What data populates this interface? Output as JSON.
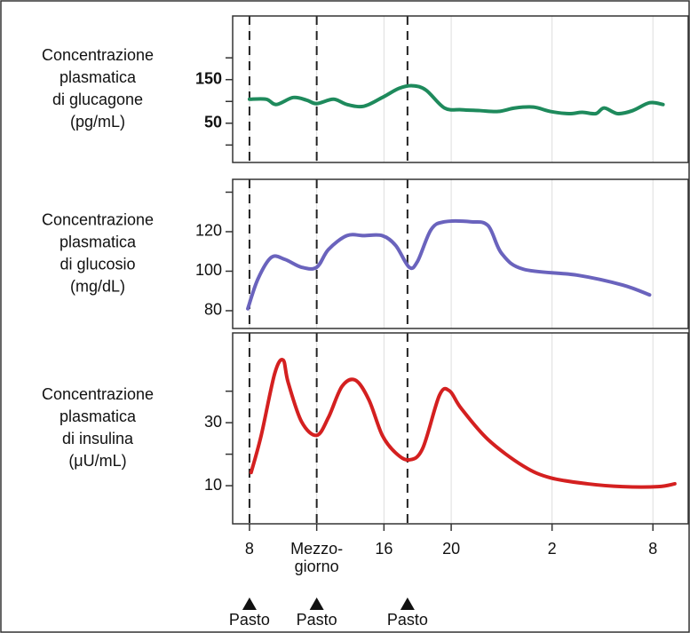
{
  "chart_data": [
    {
      "type": "line",
      "ylabel": [
        "Concentrazione",
        "plasmatica",
        "di glucagone",
        "(pg/mL)"
      ],
      "x": [
        8,
        9,
        9.6,
        10.6,
        11.4,
        12,
        13,
        13.8,
        14.8,
        15.9,
        16.9,
        17.7,
        18.5,
        19.6,
        20.6,
        21.7,
        22.8,
        23.8,
        24.9,
        25.9,
        27,
        27.8,
        28.6,
        29.1,
        29.9,
        30.8,
        31.8,
        32.6
      ],
      "values": [
        105,
        105,
        93,
        109,
        103,
        95,
        105,
        93,
        89,
        109,
        130,
        136,
        126,
        85,
        81,
        79,
        77,
        85,
        87,
        77,
        72,
        75,
        72,
        85,
        72,
        79,
        97,
        93
      ],
      "color": "#1e8a5c",
      "xlim": [
        7,
        34.1
      ],
      "ylim": [
        -40,
        296
      ],
      "yticks": [
        50,
        150
      ],
      "minor_yticks": [
        0,
        100,
        200
      ],
      "bold_ticks": true
    },
    {
      "type": "line",
      "ylabel": [
        "Concentrazione",
        "plasmatica",
        "di glucosio",
        "(mg/dL)"
      ],
      "x": [
        7.9,
        8.5,
        9.3,
        10.1,
        11.1,
        12,
        12.7,
        13.8,
        14.8,
        15.9,
        16.7,
        17.5,
        18,
        18.8,
        19.6,
        21.2,
        22.2,
        23,
        24.3,
        27.5,
        30.2,
        31.8
      ],
      "values": [
        81,
        96,
        107,
        106,
        102,
        102,
        111,
        118,
        118,
        118,
        113,
        102,
        105,
        121,
        125,
        125,
        123,
        109,
        101,
        98,
        93,
        88
      ],
      "color": "#6a63bd",
      "xlim": [
        7,
        34.1
      ],
      "ylim": [
        71,
        146.5
      ],
      "yticks": [
        80,
        100,
        120
      ],
      "minor_yticks": [
        140
      ],
      "bold_ticks": false
    },
    {
      "type": "line",
      "ylabel": [
        "Concentrazione",
        "plasmatica",
        "di insulina",
        "(μU/mL)"
      ],
      "x": [
        8.1,
        8.7,
        9.5,
        10,
        10.3,
        11.1,
        12,
        12.7,
        13.5,
        14.3,
        15.1,
        15.9,
        16.7,
        17.5,
        18.3,
        19.3,
        19.9,
        20.6,
        22.2,
        24.3,
        25.9,
        28.1,
        30.2,
        32.3,
        33.3
      ],
      "values": [
        14.2,
        26,
        45.6,
        49.9,
        42.8,
        30.3,
        26,
        31.7,
        41.5,
        43.5,
        37.3,
        26,
        20.4,
        18.2,
        21.8,
        38.7,
        40.1,
        34.5,
        24.6,
        16.2,
        12.5,
        10.6,
        9.7,
        9.7,
        10.6
      ],
      "color": "#d42020",
      "xlim": [
        7,
        34.1
      ],
      "ylim": [
        -2.1,
        58.5
      ],
      "yticks": [
        10,
        30
      ],
      "minor_yticks": [
        20,
        40
      ],
      "bold_ticks": false,
      "xticks": [
        8,
        {
          "value": 12,
          "label": "Mezzo-giorno"
        },
        16,
        20,
        {
          "value": 26,
          "label": "2"
        },
        {
          "value": 32,
          "label": "8"
        }
      ]
    }
  ],
  "meals": [
    {
      "x": 8,
      "label": "Pasto"
    },
    {
      "x": 12,
      "label": "Pasto"
    },
    {
      "x": 17.4,
      "label": "Pasto"
    }
  ]
}
